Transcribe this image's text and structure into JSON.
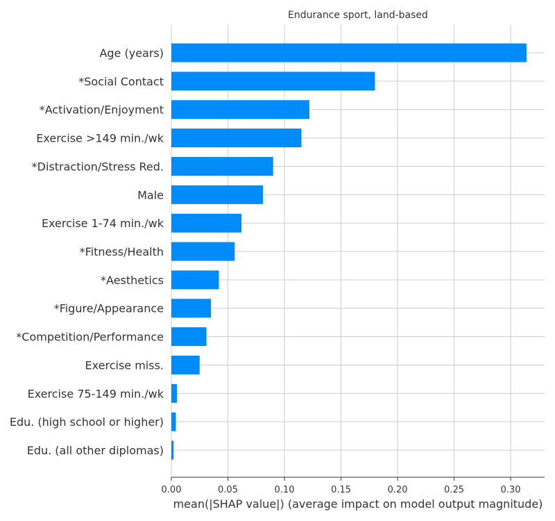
{
  "chart_data": {
    "type": "bar",
    "orientation": "horizontal",
    "title": "Endurance sport, land-based",
    "xlabel": "mean(|SHAP value|) (average impact on model output magnitude)",
    "ylabel": "",
    "xlim": [
      0,
      0.33
    ],
    "xticks": [
      0.0,
      0.05,
      0.1,
      0.15,
      0.2,
      0.25,
      0.3
    ],
    "xtick_labels": [
      "0.00",
      "0.05",
      "0.10",
      "0.15",
      "0.20",
      "0.25",
      "0.30"
    ],
    "grid": true,
    "bar_color": "#008bfb",
    "categories": [
      "Age (years)",
      "*Social Contact",
      "*Activation/Enjoyment",
      "Exercise >149 min./wk",
      "*Distraction/Stress Red.",
      "Male",
      "Exercise 1-74 min./wk",
      "*Fitness/Health",
      "*Aesthetics",
      "*Figure/Appearance",
      "*Competition/Performance",
      "Exercise miss.",
      "Exercise 75-149 min./wk",
      "Edu. (high school or higher)",
      "Edu. (all other diplomas)"
    ],
    "values": [
      0.314,
      0.18,
      0.122,
      0.115,
      0.09,
      0.081,
      0.062,
      0.056,
      0.042,
      0.035,
      0.031,
      0.025,
      0.005,
      0.004,
      0.002
    ]
  }
}
